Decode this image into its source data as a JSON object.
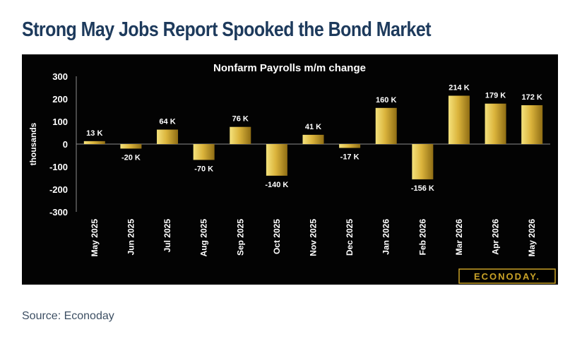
{
  "page": {
    "headline": "Strong May Jobs Report Spooked the Bond Market",
    "source": "Source: Econoday"
  },
  "chart_data": {
    "type": "bar",
    "title": "Nonfarm Payrolls m/m change",
    "ylabel": "thousands",
    "xlabel": "",
    "ylim": [
      -300,
      300
    ],
    "yticks": [
      300,
      200,
      100,
      0,
      -100,
      -200,
      -300
    ],
    "categories": [
      "May 2025",
      "Jun 2025",
      "Jul 2025",
      "Aug 2025",
      "Sep 2025",
      "Oct 2025",
      "Nov 2025",
      "Dec 2025",
      "Jan 2026",
      "Feb 2026",
      "Mar 2026",
      "Apr 2026",
      "May 2026"
    ],
    "values": [
      13,
      -20,
      64,
      -70,
      76,
      -140,
      41,
      -17,
      160,
      -156,
      214,
      179,
      172
    ],
    "data_labels": [
      "13 K",
      "-20 K",
      "64 K",
      "-70 K",
      "76 K",
      "-140 K",
      "41 K",
      "-17 K",
      "160 K",
      "-156 K",
      "214 K",
      "179 K",
      "172 K"
    ],
    "grid": false,
    "logo": "ECONODAY.",
    "colors": {
      "background": "#030303",
      "bar_light": "#f2dd72",
      "bar_mid": "#d7b13a",
      "bar_dark": "#8a6a12",
      "text": "#ffffff",
      "logo_gold": "#c9a227",
      "headline": "#1d3a5c"
    }
  }
}
